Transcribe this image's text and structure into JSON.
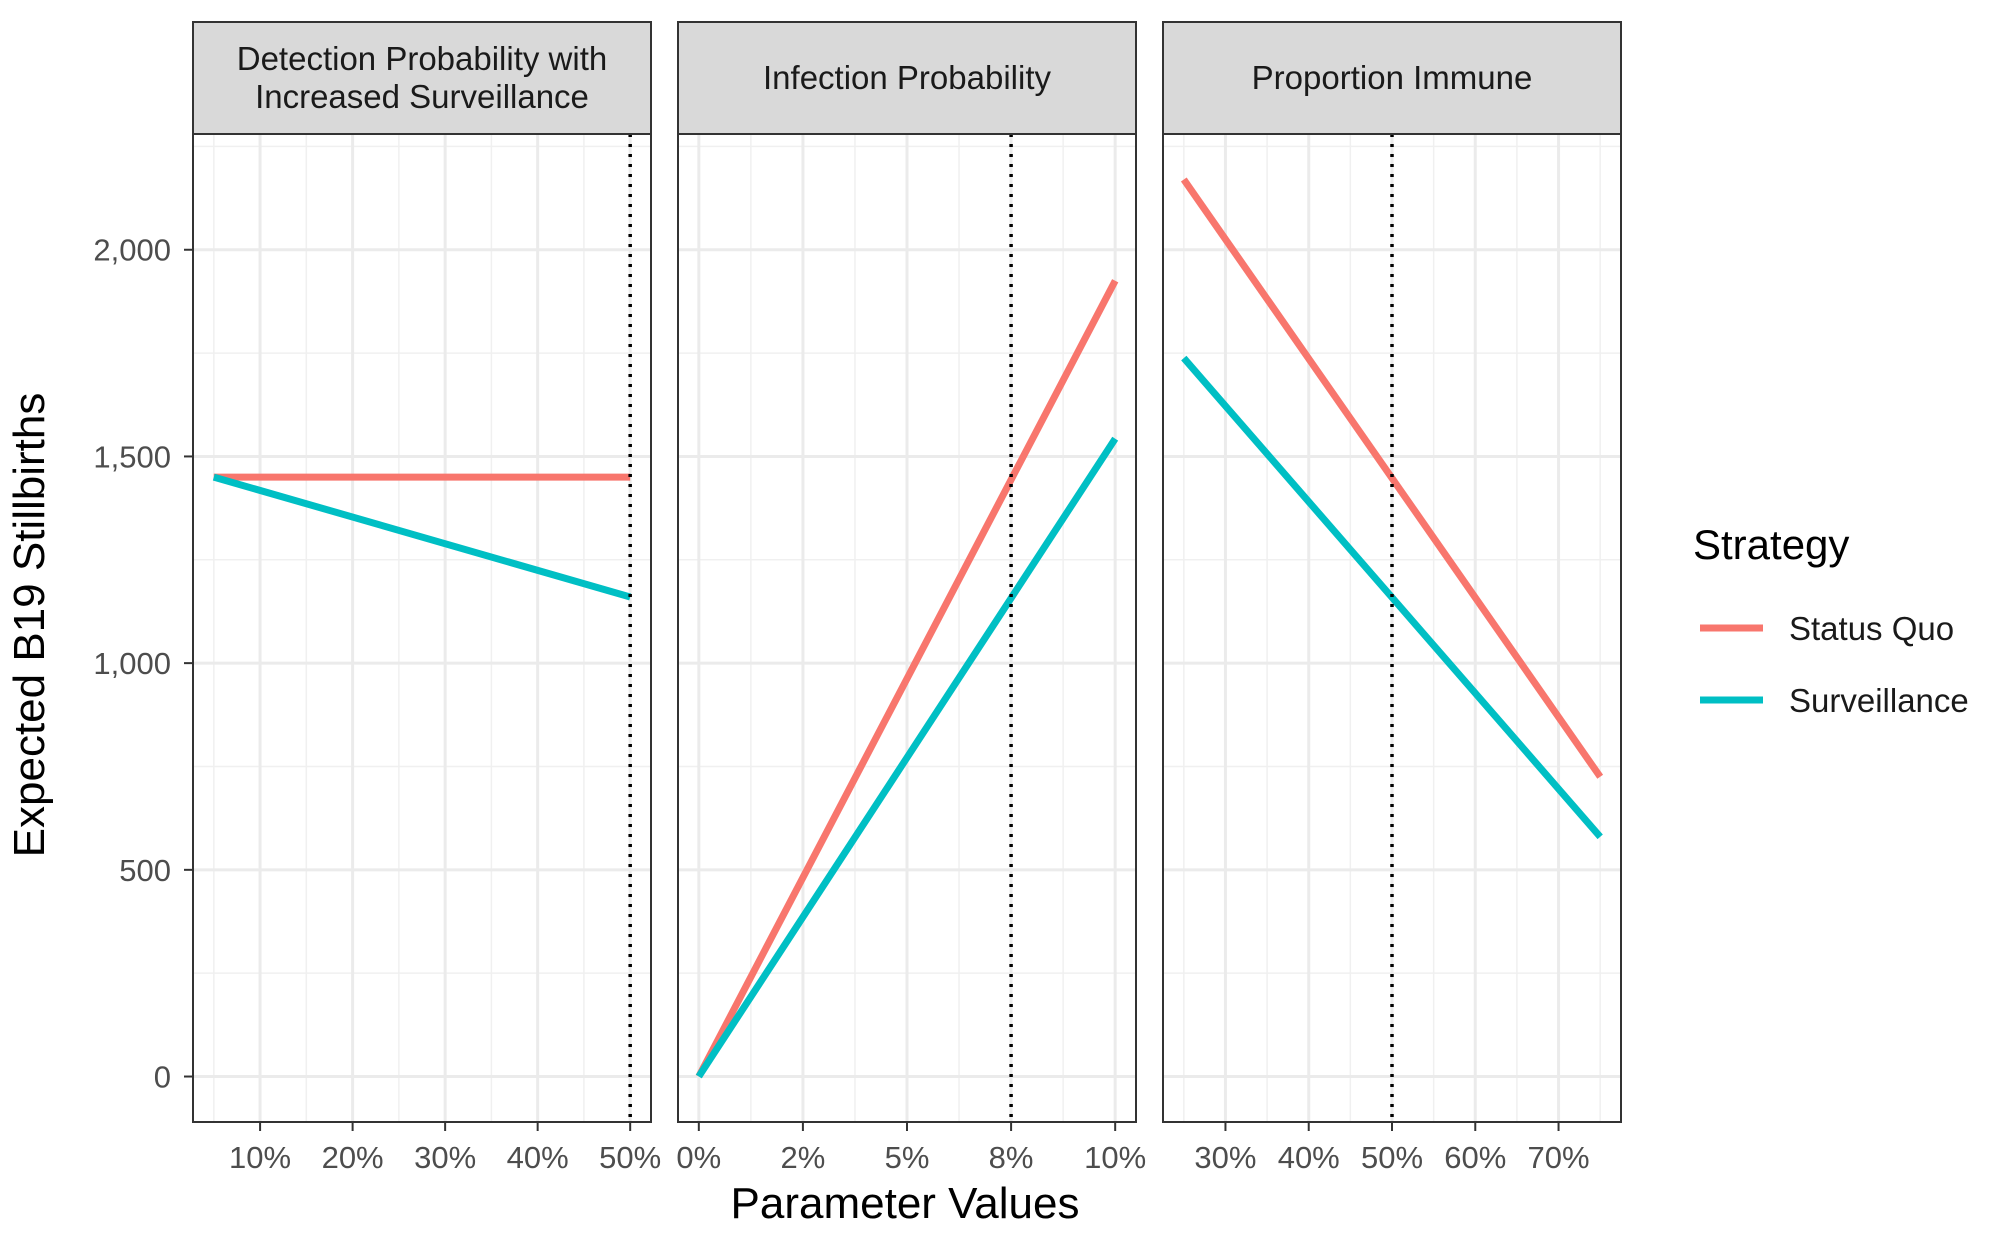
{
  "chart_data": {
    "type": "line",
    "ylabel": "Expected B19 Stillbirths",
    "xlabel": "Parameter Values",
    "ylim": [
      -110,
      2280
    ],
    "yticks": [
      0,
      500,
      1000,
      1500,
      2000
    ],
    "ytick_labels": [
      "0",
      "500",
      "1,000",
      "1,500",
      "2,000"
    ],
    "grid": true,
    "legend": {
      "title": "Strategy",
      "position": "right",
      "entries": [
        {
          "label": "Status Quo",
          "color": "#F8766D"
        },
        {
          "label": "Surveillance",
          "color": "#00BFC4"
        }
      ]
    },
    "panels": [
      {
        "title_lines": [
          "Detection Probability with",
          "Increased Surveillance"
        ],
        "xlim": [
          0.0275,
          0.5225
        ],
        "xticks": [
          0.1,
          0.2,
          0.3,
          0.4,
          0.5
        ],
        "xtick_labels": [
          "10%",
          "20%",
          "30%",
          "40%",
          "50%"
        ],
        "baseline": 0.5,
        "series": [
          {
            "name": "Status Quo",
            "color": "#F8766D",
            "x": [
              0.05,
              0.5
            ],
            "y": [
              1450,
              1450
            ]
          },
          {
            "name": "Surveillance",
            "color": "#00BFC4",
            "x": [
              0.05,
              0.5
            ],
            "y": [
              1450,
              1160
            ]
          }
        ]
      },
      {
        "title_lines": [
          "Infection Probability"
        ],
        "xlim": [
          -0.005,
          0.105
        ],
        "xticks": [
          0,
          0.025,
          0.05,
          0.075,
          0.1
        ],
        "xtick_labels": [
          "0%",
          "2%",
          "5%",
          "8%",
          "10%"
        ],
        "baseline": 0.075,
        "series": [
          {
            "name": "Status Quo",
            "color": "#F8766D",
            "x": [
              0,
              0.1
            ],
            "y": [
              0,
              1925
            ]
          },
          {
            "name": "Surveillance",
            "color": "#00BFC4",
            "x": [
              0,
              0.1
            ],
            "y": [
              0,
              1543
            ]
          }
        ]
      },
      {
        "title_lines": [
          "Proportion Immune"
        ],
        "xlim": [
          0.225,
          0.775
        ],
        "xticks": [
          0.3,
          0.4,
          0.5,
          0.6,
          0.7
        ],
        "xtick_labels": [
          "30%",
          "40%",
          "50%",
          "60%",
          "70%"
        ],
        "baseline": 0.5,
        "series": [
          {
            "name": "Status Quo",
            "color": "#F8766D",
            "x": [
              0.25,
              0.75
            ],
            "y": [
              2170,
              725
            ]
          },
          {
            "name": "Surveillance",
            "color": "#00BFC4",
            "x": [
              0.25,
              0.75
            ],
            "y": [
              1738,
              580
            ]
          }
        ]
      }
    ]
  }
}
